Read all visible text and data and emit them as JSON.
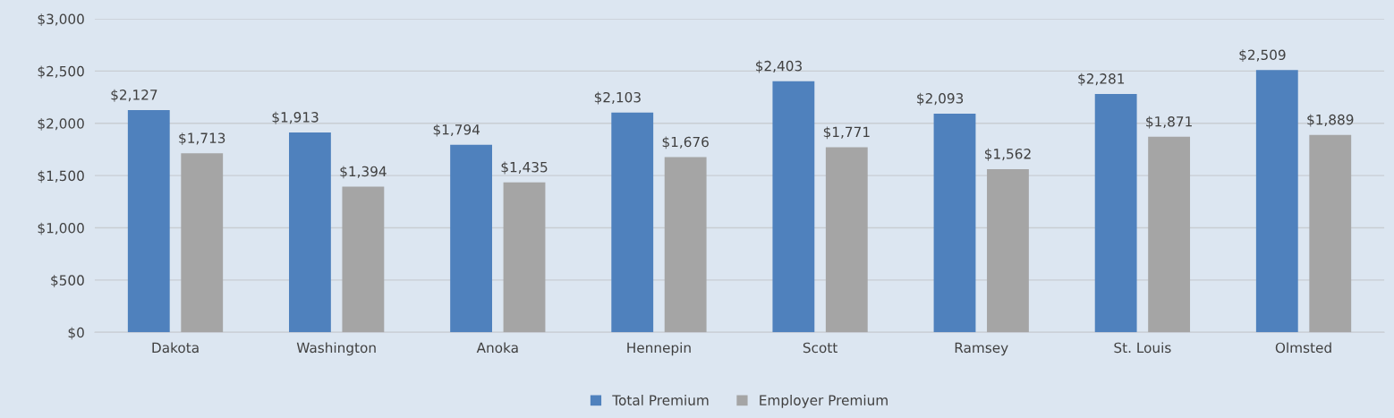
{
  "chart_data": {
    "type": "bar",
    "categories": [
      "Dakota",
      "Washington",
      "Anoka",
      "Hennepin",
      "Scott",
      "Ramsey",
      "St. Louis",
      "Olmsted"
    ],
    "series": [
      {
        "name": "Total Premium",
        "color": "#4f81bd",
        "values": [
          2127,
          1913,
          1794,
          2103,
          2403,
          2093,
          2281,
          2509
        ],
        "value_labels": [
          "$2,127",
          "$1,913",
          "$1,794",
          "$2,103",
          "$2,403",
          "$2,093",
          "$2,281",
          "$2,509"
        ]
      },
      {
        "name": "Employer Premium",
        "color": "#a5a5a5",
        "values": [
          1713,
          1394,
          1435,
          1676,
          1771,
          1562,
          1871,
          1889
        ],
        "value_labels": [
          "$1,713",
          "$1,394",
          "$1,435",
          "$1,676",
          "$1,771",
          "$1,562",
          "$1,871",
          "$1,889"
        ]
      }
    ],
    "ylim": [
      0,
      3000
    ],
    "yticks": [
      {
        "value": 0,
        "label": "$0"
      },
      {
        "value": 500,
        "label": "$500"
      },
      {
        "value": 1000,
        "label": "$1,000"
      },
      {
        "value": 1500,
        "label": "$1,500"
      },
      {
        "value": 2000,
        "label": "$2,000"
      },
      {
        "value": 2500,
        "label": "$2,500"
      },
      {
        "value": 3000,
        "label": "$3,000"
      }
    ],
    "grid": "y",
    "legend": "bottom"
  }
}
